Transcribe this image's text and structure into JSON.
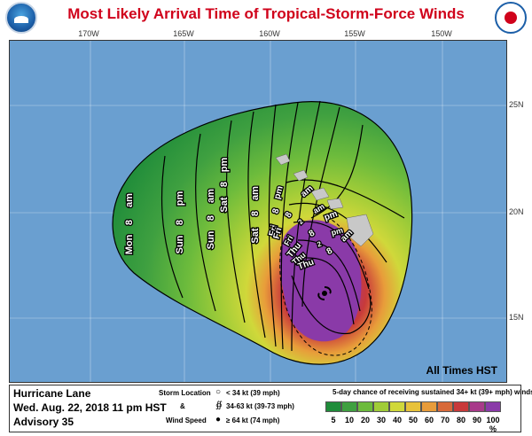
{
  "title": "Most Likely Arrival Time of Tropical-Storm-Force Winds",
  "logos": {
    "left": "noaa-logo-icon",
    "right": "nws-logo-icon"
  },
  "map": {
    "longitude_labels": [
      "170W",
      "165W",
      "160W",
      "155W",
      "150W"
    ],
    "latitude_labels": [
      "25N",
      "20N",
      "15N"
    ],
    "time_labels": [
      "Mon",
      "8",
      "am",
      "Sun",
      "8",
      "pm",
      "Sun",
      "8",
      "am",
      "Sat",
      "8",
      "pm",
      "Sat",
      "8",
      "am",
      "Fri",
      "8",
      "pm",
      "Fri",
      "8",
      "am",
      "Fri",
      "2",
      "am",
      "Thu",
      "8",
      "pm",
      "Thu",
      "2",
      "pm",
      "Thu",
      "8",
      "am"
    ],
    "note": "All Times HST",
    "storm_symbol": "hurricane-icon",
    "colors": {
      "ocean": "#6a9fd0",
      "land": "#c8c8c8"
    }
  },
  "footer": {
    "storm_name": "Hurricane Lane",
    "advisory_time": "Wed. Aug. 22, 2018  11 pm HST",
    "advisory_number": "Advisory 35",
    "legend": {
      "storm_location": "Storm Location",
      "ampersand": "&",
      "wind_speed": "Wind Speed",
      "items": [
        {
          "symbol": "circle-outline-icon",
          "label": "< 34 kt (39 mph)"
        },
        {
          "symbol": "tropical-storm-icon",
          "label": "34-63 kt (39-73 mph)"
        },
        {
          "symbol": "hurricane-icon",
          "label": "≥ 64 kt (74 mph)"
        }
      ]
    },
    "colorbar": {
      "title": "5-day chance of receiving sustained 34+ kt (39+ mph) winds",
      "ticks": [
        "5",
        "10",
        "20",
        "30",
        "40",
        "50",
        "60",
        "70",
        "80",
        "90",
        "100 %"
      ],
      "colors": [
        "#1f8c3a",
        "#3fa040",
        "#6cbb3c",
        "#a0cc38",
        "#d0d83a",
        "#e8c23a",
        "#e89c3a",
        "#d86a3a",
        "#c83a3a",
        "#a83a8a",
        "#8a3aa8"
      ]
    }
  }
}
